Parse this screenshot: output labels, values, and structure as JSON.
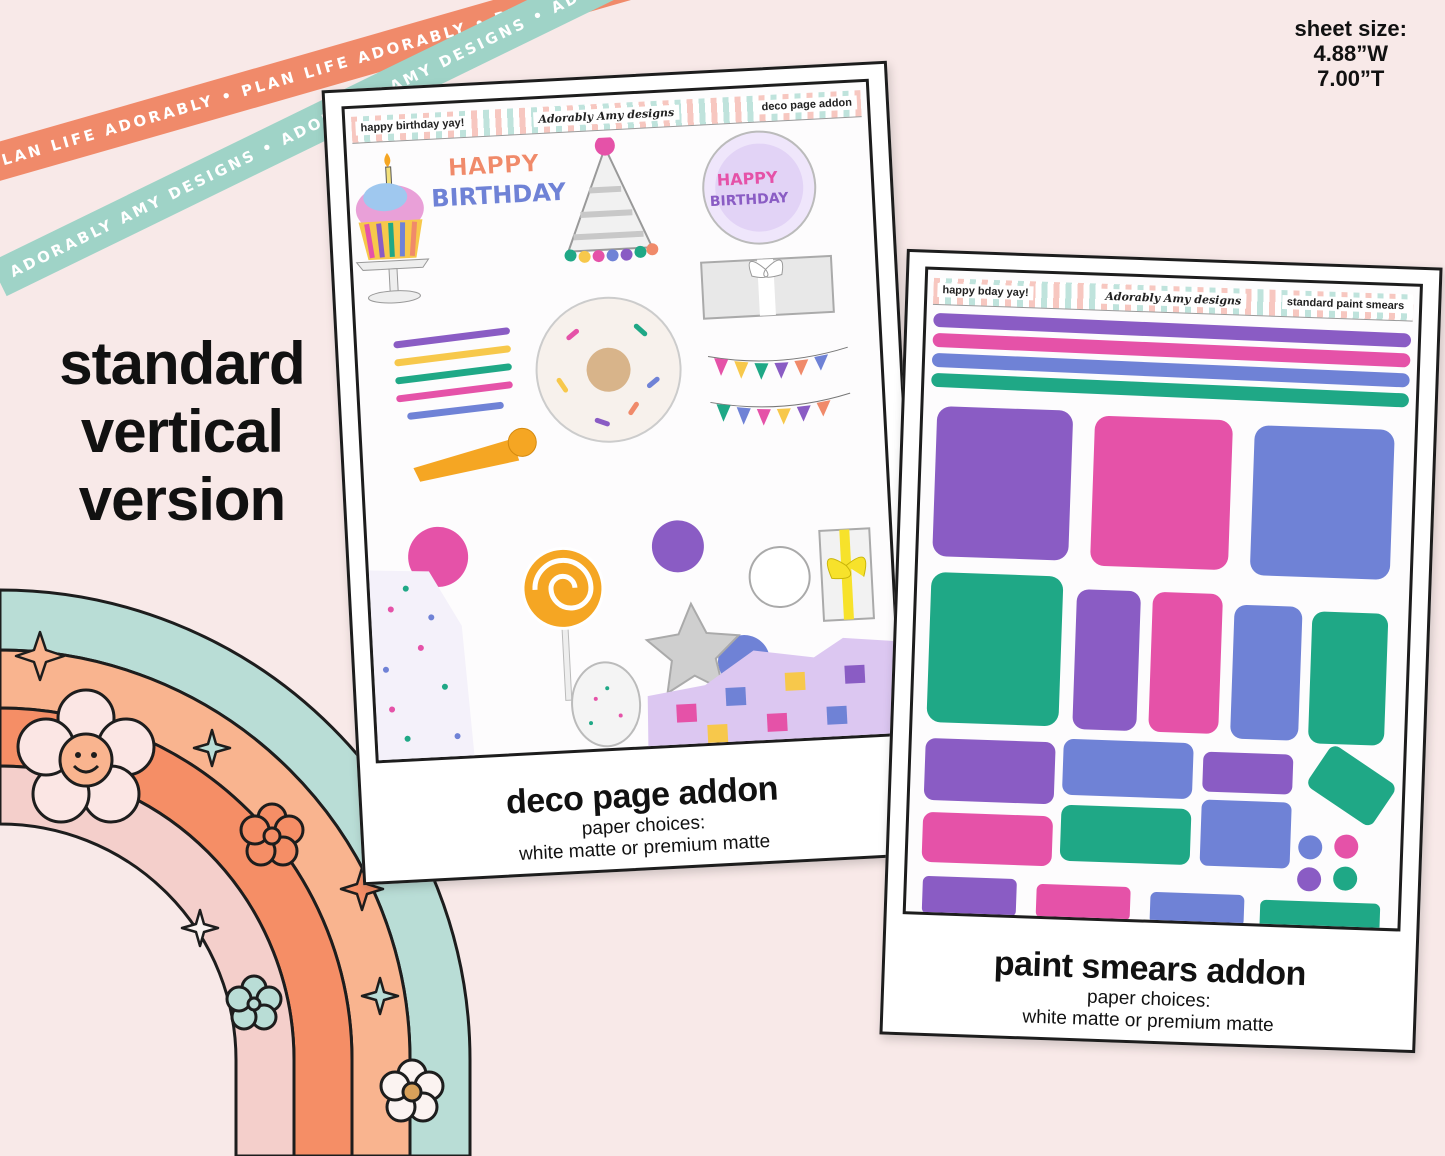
{
  "ribbons": {
    "coral_text": "PLAN LIFE ADORABLY • PLAN LIFE ADORABLY • PLAN LIFE ADORABLY •",
    "mint_text": "ADORABLY AMY DESIGNS • ADORABLY AMY DESIGNS • ADORABLY AMY DESIGNS •"
  },
  "sheet_size": {
    "label": "sheet size:",
    "width": "4.88”W",
    "height": "7.00”T"
  },
  "headline": {
    "line1": "standard",
    "line2": "vertical",
    "line3": "version"
  },
  "sheets": [
    {
      "header_left": "happy birthday yay!",
      "header_center": "Adorably Amy designs",
      "header_right": "deco page addon",
      "title": "deco page addon",
      "paper_label": "paper choices:",
      "paper_options": "white matte or premium matte"
    },
    {
      "header_left": "happy bday yay!",
      "header_center": "Adorably Amy designs",
      "header_right": "standard paint smears",
      "title": "paint smears addon",
      "paper_label": "paper choices:",
      "paper_options": "white matte or premium matte"
    }
  ],
  "deco_art": {
    "happy_text": "HAPPY",
    "birthday_text": "BIRTHDAY"
  },
  "colors": {
    "purple": "#8a5cc4",
    "pink": "#e552a8",
    "blue": "#6f82d6",
    "green": "#1fa886",
    "coral": "#f08a6a",
    "mint": "#9fd3c7",
    "peach": "#f9b48f",
    "blush": "#f4cfcb"
  }
}
